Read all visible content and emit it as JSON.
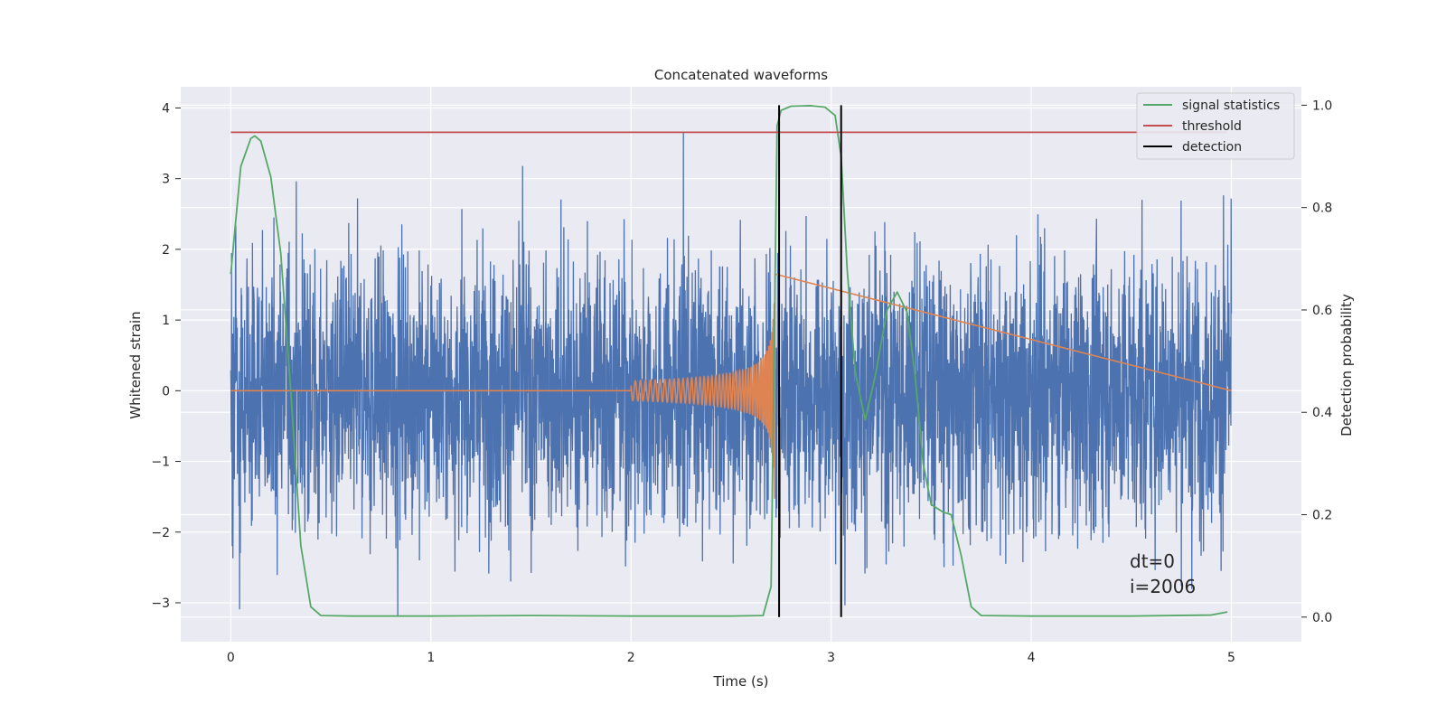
{
  "chart_data": {
    "type": "line",
    "title": "Concatenated waveforms",
    "xlabel": "Time (s)",
    "ylabel": "Whitened strain",
    "ylabel_right": "Detection probability",
    "xlim": [
      -0.25,
      5.35
    ],
    "ylim": [
      -3.55,
      4.3
    ],
    "ylim_right": [
      -0.048,
      1.036
    ],
    "x_ticks": [
      0,
      1,
      2,
      3,
      4,
      5
    ],
    "y_ticks": [
      -3,
      -2,
      -1,
      0,
      1,
      2,
      3,
      4
    ],
    "y_ticks_right": [
      0.0,
      0.2,
      0.4,
      0.6,
      0.8,
      1.0
    ],
    "x_tick_labels": [
      "0",
      "1",
      "2",
      "3",
      "4",
      "5"
    ],
    "y_tick_labels": [
      "−3",
      "−2",
      "−1",
      "0",
      "1",
      "2",
      "3",
      "4"
    ],
    "y_tick_labels_right": [
      "0.0",
      "0.2",
      "0.4",
      "0.6",
      "0.8",
      "1.0"
    ],
    "grid": true,
    "legend_position": "top-right",
    "colors": {
      "strain": "#4c72b0",
      "chirp": "#dd8452",
      "signal": "#55a868",
      "threshold": "#c44e52",
      "detection": "#000000",
      "axes_bg": "#eaeaf2",
      "grid": "#ffffff"
    },
    "legend": [
      {
        "label": "signal statistics",
        "color": "#55a868"
      },
      {
        "label": "threshold",
        "color": "#c44e52"
      },
      {
        "label": "detection",
        "color": "#000000"
      }
    ],
    "series": [
      {
        "name": "signal statistics",
        "axis": "right",
        "x": [
          0.0,
          0.05,
          0.1,
          0.12,
          0.15,
          0.2,
          0.25,
          0.3,
          0.35,
          0.4,
          0.45,
          0.6,
          1.0,
          1.5,
          2.0,
          2.5,
          2.66,
          2.7,
          2.73,
          2.75,
          2.8,
          2.9,
          2.97,
          3.02,
          3.05,
          3.08,
          3.12,
          3.17,
          3.22,
          3.28,
          3.33,
          3.38,
          3.42,
          3.46,
          3.5,
          3.56,
          3.6,
          3.65,
          3.7,
          3.75,
          4.0,
          4.5,
          4.9,
          4.98
        ],
        "y": [
          0.67,
          0.88,
          0.935,
          0.94,
          0.93,
          0.86,
          0.71,
          0.44,
          0.14,
          0.02,
          0.003,
          0.002,
          0.002,
          0.003,
          0.002,
          0.002,
          0.003,
          0.06,
          0.96,
          0.99,
          0.998,
          0.999,
          0.996,
          0.98,
          0.9,
          0.68,
          0.48,
          0.385,
          0.47,
          0.6,
          0.635,
          0.595,
          0.47,
          0.3,
          0.22,
          0.205,
          0.2,
          0.12,
          0.02,
          0.003,
          0.002,
          0.002,
          0.004,
          0.01
        ]
      },
      {
        "name": "threshold",
        "axis": "right",
        "x": [
          0.0,
          4.98
        ],
        "y": [
          0.947,
          0.947
        ]
      }
    ],
    "strain_range": {
      "x": [
        0.0,
        5.0
      ],
      "min": -3.2,
      "max": 3.9
    },
    "chirp": {
      "start": 2.0,
      "end": 2.72,
      "peak_amplitude": 1.65
    },
    "detections": [
      2.74,
      3.05
    ],
    "annotations": [
      "dt=0",
      "i=2006"
    ]
  }
}
